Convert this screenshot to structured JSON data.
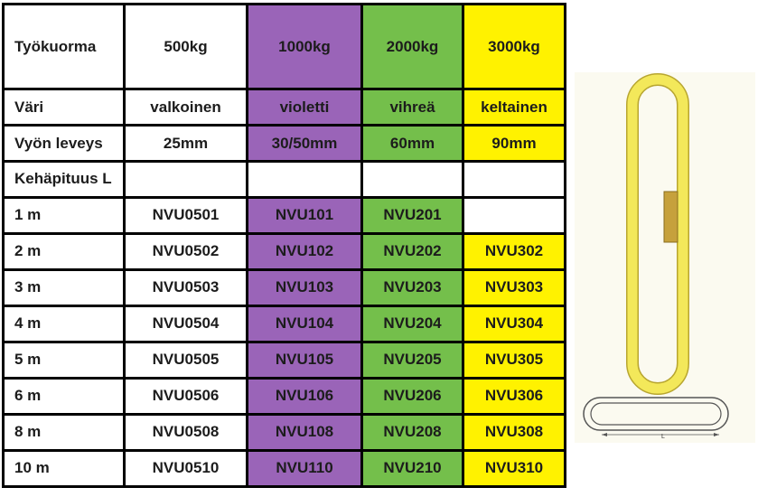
{
  "columns": [
    {
      "key": "label",
      "color": "#ffffff"
    },
    {
      "key": "500",
      "color": "#ffffff"
    },
    {
      "key": "1000",
      "color": "#9a64b8"
    },
    {
      "key": "2000",
      "color": "#74bf4b"
    },
    {
      "key": "3000",
      "color": "#fff200"
    }
  ],
  "header_rows": [
    [
      "Työkuorma",
      "500kg",
      "1000kg",
      "2000kg",
      "3000kg"
    ],
    [
      "Väri",
      "valkoinen",
      "violetti",
      "vihreä",
      "keltainen"
    ],
    [
      "Vyön leveys",
      "25mm",
      "30/50mm",
      "60mm",
      "90mm"
    ]
  ],
  "length_header": "Kehäpituus L",
  "rows": [
    [
      "1 m",
      "NVU0501",
      "NVU101",
      "NVU201",
      ""
    ],
    [
      "2 m",
      "NVU0502",
      "NVU102",
      "NVU202",
      "NVU302"
    ],
    [
      "3 m",
      "NVU0503",
      "NVU103",
      "NVU203",
      "NVU303"
    ],
    [
      "4 m",
      "NVU0504",
      "NVU104",
      "NVU204",
      "NVU304"
    ],
    [
      "5 m",
      "NVU0505",
      "NVU105",
      "NVU205",
      "NVU305"
    ],
    [
      "6 m",
      "NVU0506",
      "NVU106",
      "NVU206",
      "NVU306"
    ],
    [
      "8 m",
      "NVU0508",
      "NVU108",
      "NVU208",
      "NVU308"
    ],
    [
      "10 m",
      "NVU0510",
      "NVU110",
      "NVU210",
      "NVU310"
    ]
  ],
  "illustration": {
    "sling_color": "#f3e85a",
    "sling_label_color": "#c6a13c",
    "dimension_label": "L"
  }
}
